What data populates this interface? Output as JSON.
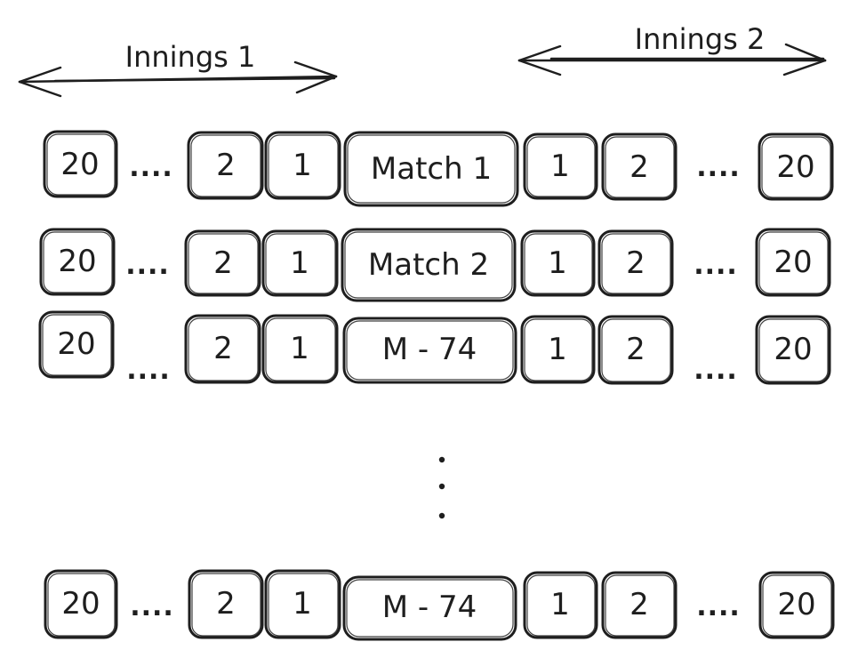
{
  "innings": [
    {
      "label": "Innings 1"
    },
    {
      "label": "Innings 2"
    }
  ],
  "rows": [
    {
      "cells": [
        "20",
        "....",
        "2",
        "1",
        "Match 1",
        "1",
        "2",
        "....",
        "20"
      ]
    },
    {
      "cells": [
        "20",
        "....",
        "2",
        "1",
        "Match 2",
        "1",
        "2",
        "....",
        "20"
      ]
    },
    {
      "cells": [
        "20",
        "....",
        "2",
        "1",
        "M - 74",
        "1",
        "2",
        "....",
        "20"
      ]
    },
    {
      "cells": [
        "20",
        "....",
        "2",
        "1",
        "M - 74",
        "1",
        "2",
        "....",
        "20"
      ]
    }
  ]
}
